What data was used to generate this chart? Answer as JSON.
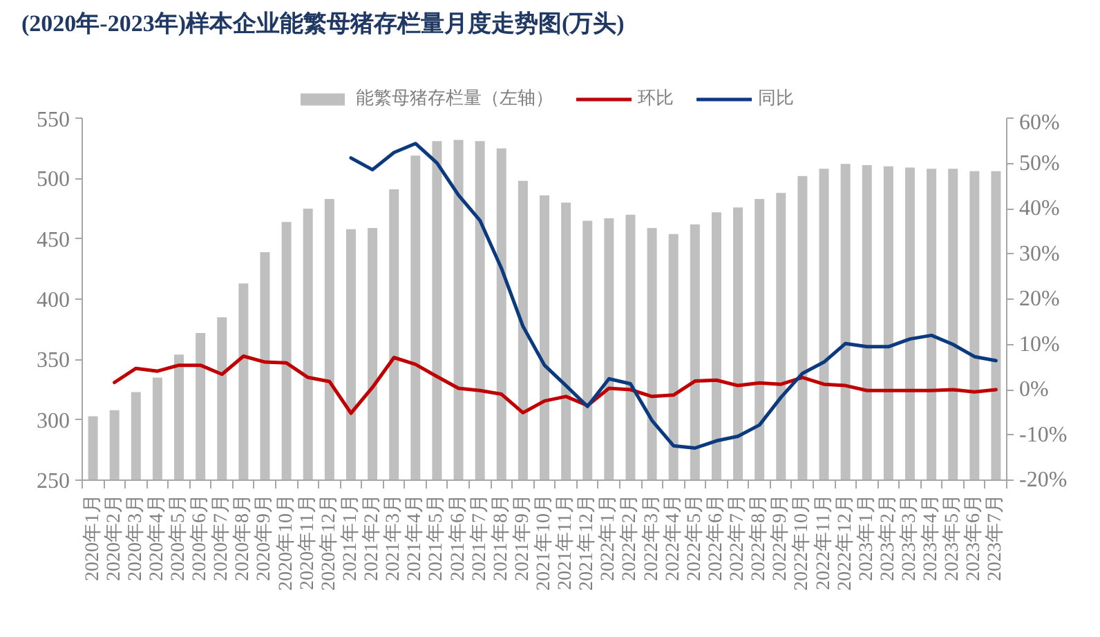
{
  "chart_data": {
    "type": "bar",
    "title": "(2020年-2023年)样本企业能繁母猪存栏量月度走势图(万头)",
    "categories": [
      "2020年1月",
      "2020年2月",
      "2020年3月",
      "2020年4月",
      "2020年5月",
      "2020年6月",
      "2020年7月",
      "2020年8月",
      "2020年9月",
      "2020年10月",
      "2020年11月",
      "2020年12月",
      "2021年1月",
      "2021年2月",
      "2021年3月",
      "2021年4月",
      "2021年5月",
      "2021年6月",
      "2021年7月",
      "2021年8月",
      "2021年9月",
      "2021年10月",
      "2021年11月",
      "2021年12月",
      "2022年1月",
      "2022年2月",
      "2022年3月",
      "2022年4月",
      "2022年5月",
      "2022年6月",
      "2022年7月",
      "2022年8月",
      "2022年9月",
      "2022年10月",
      "2022年11月",
      "2022年12月",
      "2023年1月",
      "2023年2月",
      "2023年3月",
      "2023年4月",
      "2023年5月",
      "2023年6月",
      "2023年7月"
    ],
    "ylim": [
      250,
      550
    ],
    "yticks": [
      250,
      300,
      350,
      400,
      450,
      500,
      550
    ],
    "y2lim": [
      -20,
      60
    ],
    "y2ticks": [
      {
        "value": -20,
        "label": "-20%"
      },
      {
        "value": -10,
        "label": "-10%"
      },
      {
        "value": 0,
        "label": "0%"
      },
      {
        "value": 10,
        "label": "10%"
      },
      {
        "value": 20,
        "label": "20%"
      },
      {
        "value": 30,
        "label": "30%"
      },
      {
        "value": 40,
        "label": "40%"
      },
      {
        "value": 50,
        "label": "50%"
      },
      {
        "value": 60,
        "label": "60%"
      }
    ],
    "legend": "top",
    "grid": false,
    "series": [
      {
        "name": "能繁母猪存栏量（左轴）",
        "color": "#bfbfbf",
        "values": [
          303,
          308,
          323,
          335,
          354,
          372,
          385,
          413,
          439,
          464,
          475,
          483,
          458,
          459,
          491,
          519,
          531,
          532,
          531,
          525,
          498,
          486,
          480,
          465,
          467,
          470,
          459,
          454,
          462,
          472,
          476,
          483,
          488,
          502,
          508,
          512,
          511,
          510,
          509,
          508,
          508,
          506,
          506
        ]
      },
      {
        "name": "环比",
        "type": "line",
        "axis": "y2",
        "color": "#c00000",
        "values": [
          null,
          1.6,
          4.7,
          4.1,
          5.4,
          5.4,
          3.4,
          7.4,
          6.1,
          5.9,
          2.7,
          1.8,
          -5.2,
          0.5,
          7.1,
          5.6,
          2.9,
          0.3,
          -0.2,
          -1.0,
          -5.1,
          -2.5,
          -1.5,
          -3.5,
          0.3,
          0.0,
          -1.5,
          -1.2,
          1.9,
          2.1,
          0.9,
          1.5,
          1.2,
          2.7,
          1.2,
          0.9,
          -0.2,
          -0.2,
          -0.2,
          -0.2,
          0.0,
          -0.5,
          0.0
        ]
      },
      {
        "name": "同比",
        "type": "line",
        "axis": "y2",
        "color": "#0b3a7e",
        "values": [
          null,
          null,
          null,
          null,
          null,
          null,
          null,
          null,
          null,
          null,
          null,
          null,
          51.2,
          48.6,
          52.4,
          54.4,
          50.1,
          43.0,
          37.4,
          26.8,
          14.0,
          5.4,
          0.9,
          -3.7,
          2.4,
          1.3,
          -6.8,
          -12.4,
          -12.9,
          -11.3,
          -10.3,
          -7.8,
          -1.7,
          3.6,
          6.1,
          10.2,
          9.5,
          9.5,
          11.2,
          12.0,
          10.0,
          7.3,
          6.4
        ]
      }
    ]
  }
}
